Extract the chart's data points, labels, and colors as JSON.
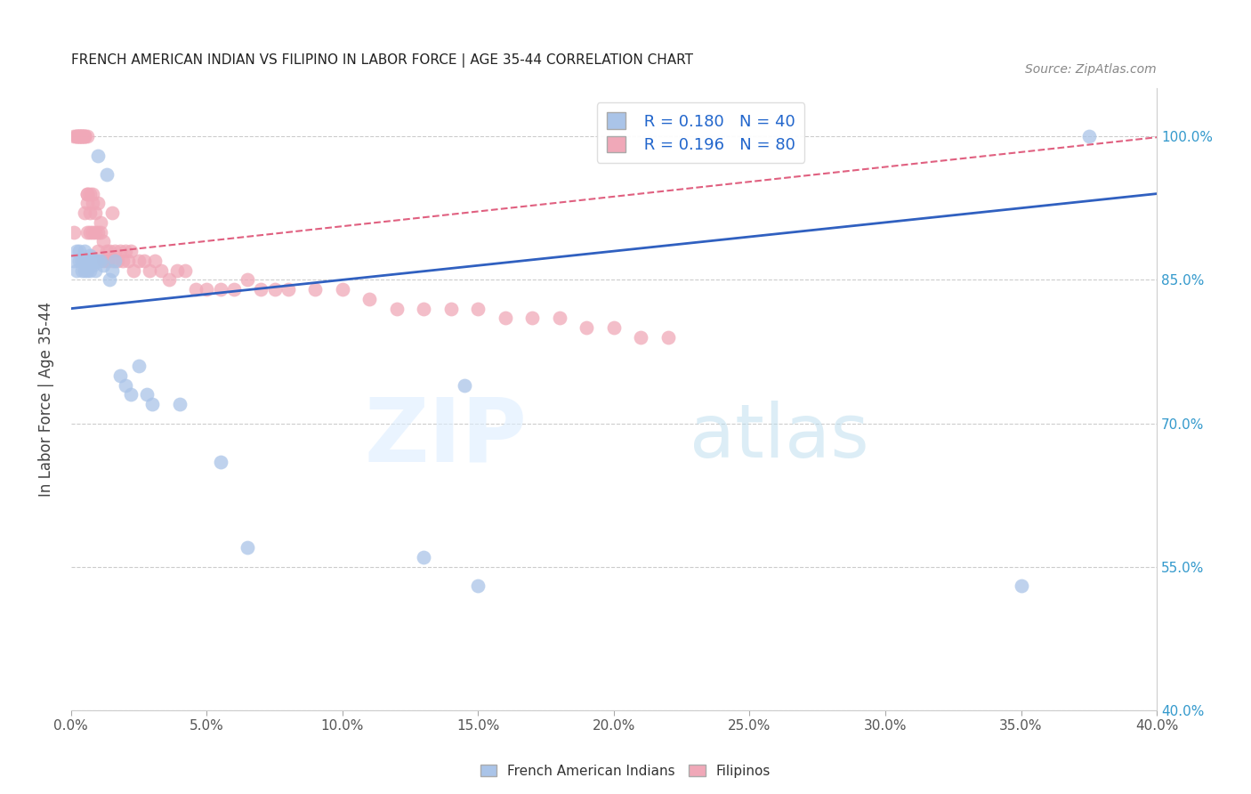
{
  "title": "FRENCH AMERICAN INDIAN VS FILIPINO IN LABOR FORCE | AGE 35-44 CORRELATION CHART",
  "source": "Source: ZipAtlas.com",
  "ylabel": "In Labor Force | Age 35-44",
  "xlim": [
    0.0,
    0.4
  ],
  "ylim": [
    0.4,
    1.05
  ],
  "xtick_positions": [
    0.0,
    0.05,
    0.1,
    0.15,
    0.2,
    0.25,
    0.3,
    0.35,
    0.4
  ],
  "xtick_labels": [
    "0.0%",
    "5.0%",
    "10.0%",
    "15.0%",
    "20.0%",
    "25.0%",
    "30.0%",
    "35.0%",
    "40.0%"
  ],
  "ytick_positions": [
    0.4,
    0.55,
    0.7,
    0.85,
    1.0
  ],
  "ytick_labels": [
    "40.0%",
    "55.0%",
    "70.0%",
    "85.0%",
    "100.0%"
  ],
  "blue_R": 0.18,
  "blue_N": 40,
  "pink_R": 0.196,
  "pink_N": 80,
  "blue_color": "#aac4e8",
  "pink_color": "#f0a8b8",
  "blue_line_color": "#3060c0",
  "pink_line_color": "#e06080",
  "legend_label_blue": "French American Indians",
  "legend_label_pink": "Filipinos",
  "blue_scatter_x": [
    0.001,
    0.002,
    0.002,
    0.003,
    0.003,
    0.004,
    0.004,
    0.005,
    0.005,
    0.005,
    0.006,
    0.006,
    0.007,
    0.007,
    0.008,
    0.008,
    0.009,
    0.009,
    0.01,
    0.01,
    0.011,
    0.012,
    0.013,
    0.014,
    0.015,
    0.016,
    0.018,
    0.02,
    0.022,
    0.025,
    0.028,
    0.03,
    0.04,
    0.055,
    0.065,
    0.13,
    0.145,
    0.15,
    0.35,
    0.375
  ],
  "blue_scatter_y": [
    0.87,
    0.88,
    0.86,
    0.87,
    0.88,
    0.87,
    0.86,
    0.88,
    0.87,
    0.86,
    0.87,
    0.86,
    0.875,
    0.86,
    0.87,
    0.865,
    0.87,
    0.86,
    0.98,
    0.87,
    0.87,
    0.865,
    0.96,
    0.85,
    0.86,
    0.87,
    0.75,
    0.74,
    0.73,
    0.76,
    0.73,
    0.72,
    0.72,
    0.66,
    0.57,
    0.56,
    0.74,
    0.53,
    0.53,
    1.0
  ],
  "pink_scatter_x": [
    0.001,
    0.001,
    0.002,
    0.002,
    0.002,
    0.003,
    0.003,
    0.003,
    0.003,
    0.004,
    0.004,
    0.004,
    0.004,
    0.005,
    0.005,
    0.005,
    0.005,
    0.006,
    0.006,
    0.006,
    0.006,
    0.006,
    0.007,
    0.007,
    0.007,
    0.008,
    0.008,
    0.008,
    0.009,
    0.009,
    0.01,
    0.01,
    0.01,
    0.011,
    0.011,
    0.012,
    0.012,
    0.013,
    0.013,
    0.014,
    0.015,
    0.015,
    0.016,
    0.017,
    0.018,
    0.019,
    0.02,
    0.021,
    0.022,
    0.023,
    0.025,
    0.027,
    0.029,
    0.031,
    0.033,
    0.036,
    0.039,
    0.042,
    0.046,
    0.05,
    0.055,
    0.06,
    0.065,
    0.07,
    0.075,
    0.08,
    0.09,
    0.1,
    0.11,
    0.12,
    0.13,
    0.14,
    0.15,
    0.16,
    0.17,
    0.18,
    0.19,
    0.2,
    0.21,
    0.22
  ],
  "pink_scatter_y": [
    0.9,
    1.0,
    1.0,
    1.0,
    1.0,
    1.0,
    1.0,
    1.0,
    1.0,
    1.0,
    1.0,
    1.0,
    1.0,
    1.0,
    1.0,
    1.0,
    0.92,
    1.0,
    0.93,
    0.94,
    0.9,
    0.94,
    0.92,
    0.94,
    0.9,
    0.93,
    0.9,
    0.94,
    0.92,
    0.9,
    0.9,
    0.93,
    0.88,
    0.9,
    0.91,
    0.89,
    0.87,
    0.87,
    0.88,
    0.88,
    0.92,
    0.87,
    0.88,
    0.87,
    0.88,
    0.87,
    0.88,
    0.87,
    0.88,
    0.86,
    0.87,
    0.87,
    0.86,
    0.87,
    0.86,
    0.85,
    0.86,
    0.86,
    0.84,
    0.84,
    0.84,
    0.84,
    0.85,
    0.84,
    0.84,
    0.84,
    0.84,
    0.84,
    0.83,
    0.82,
    0.82,
    0.82,
    0.82,
    0.81,
    0.81,
    0.81,
    0.8,
    0.8,
    0.79,
    0.79
  ]
}
